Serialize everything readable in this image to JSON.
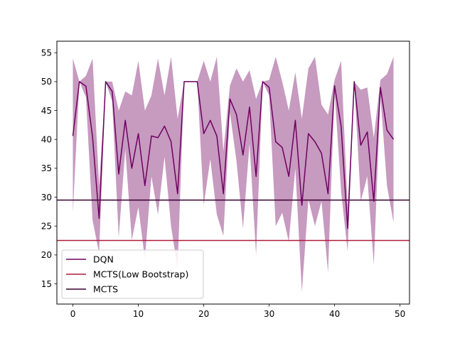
{
  "chart_data": {
    "type": "line",
    "title": "",
    "xlabel": "",
    "ylabel": "",
    "xlim": [
      -2.45,
      51.45
    ],
    "ylim": [
      11.5,
      57.0
    ],
    "xticks": [
      0,
      10,
      20,
      30,
      40,
      50
    ],
    "yticks": [
      15,
      20,
      25,
      30,
      35,
      40,
      45,
      50,
      55
    ],
    "grid": false,
    "legend_position": "lower-left",
    "series": [
      {
        "name": "DQN",
        "color": "#6e0060",
        "band_color": "#c79ac0",
        "x": [
          0,
          1,
          2,
          3,
          4,
          5,
          6,
          7,
          8,
          9,
          10,
          11,
          12,
          13,
          14,
          15,
          16,
          17,
          18,
          19,
          20,
          21,
          22,
          23,
          24,
          25,
          26,
          27,
          28,
          29,
          30,
          31,
          32,
          33,
          34,
          35,
          36,
          37,
          38,
          39,
          40,
          41,
          42,
          43,
          44,
          45,
          46,
          47,
          48,
          49
        ],
        "values": [
          40.6,
          50.0,
          49.2,
          40.4,
          26.3,
          50.0,
          48.3,
          34.0,
          43.3,
          35.0,
          41.0,
          32.0,
          40.6,
          40.3,
          42.3,
          39.6,
          30.6,
          50.0,
          50.0,
          50.0,
          41.0,
          43.3,
          40.6,
          30.6,
          47.0,
          44.3,
          37.3,
          45.6,
          33.6,
          50.0,
          49.0,
          39.6,
          38.6,
          33.6,
          43.3,
          28.6,
          41.0,
          39.6,
          37.6,
          30.6,
          49.3,
          42.3,
          24.6,
          50.0,
          39.0,
          41.3,
          29.3,
          49.0,
          41.6,
          40.0
        ],
        "upper": [
          54.0,
          50.0,
          51.0,
          54.0,
          32.0,
          50.0,
          50.0,
          45.0,
          48.3,
          47.6,
          53.6,
          45.0,
          47.6,
          54.0,
          47.6,
          54.3,
          43.6,
          50.0,
          50.0,
          50.0,
          53.6,
          50.0,
          54.3,
          38.0,
          49.3,
          52.3,
          50.0,
          52.0,
          47.0,
          50.0,
          50.3,
          54.3,
          50.0,
          45.0,
          51.6,
          43.6,
          52.3,
          54.3,
          46.0,
          44.3,
          50.3,
          53.6,
          28.3,
          50.0,
          48.6,
          49.0,
          40.3,
          50.3,
          51.3,
          54.3
        ],
        "lower": [
          27.3,
          50.0,
          47.3,
          26.0,
          20.3,
          50.0,
          46.6,
          23.0,
          38.3,
          22.6,
          28.3,
          19.3,
          33.6,
          27.0,
          37.0,
          25.0,
          17.6,
          50.0,
          50.0,
          50.0,
          28.6,
          36.6,
          27.0,
          23.3,
          44.6,
          36.3,
          24.6,
          39.3,
          20.0,
          50.0,
          47.6,
          25.0,
          27.3,
          22.3,
          35.0,
          13.6,
          29.6,
          25.0,
          29.3,
          17.0,
          48.3,
          31.0,
          20.6,
          50.0,
          29.3,
          33.6,
          18.3,
          47.6,
          32.0,
          25.6
        ]
      },
      {
        "name": "MCTS(Low Bootstrap)",
        "color": "#b01c3a",
        "constant": 22.5
      },
      {
        "name": "MCTS",
        "color": "#3a0030",
        "constant": 29.5
      }
    ]
  }
}
